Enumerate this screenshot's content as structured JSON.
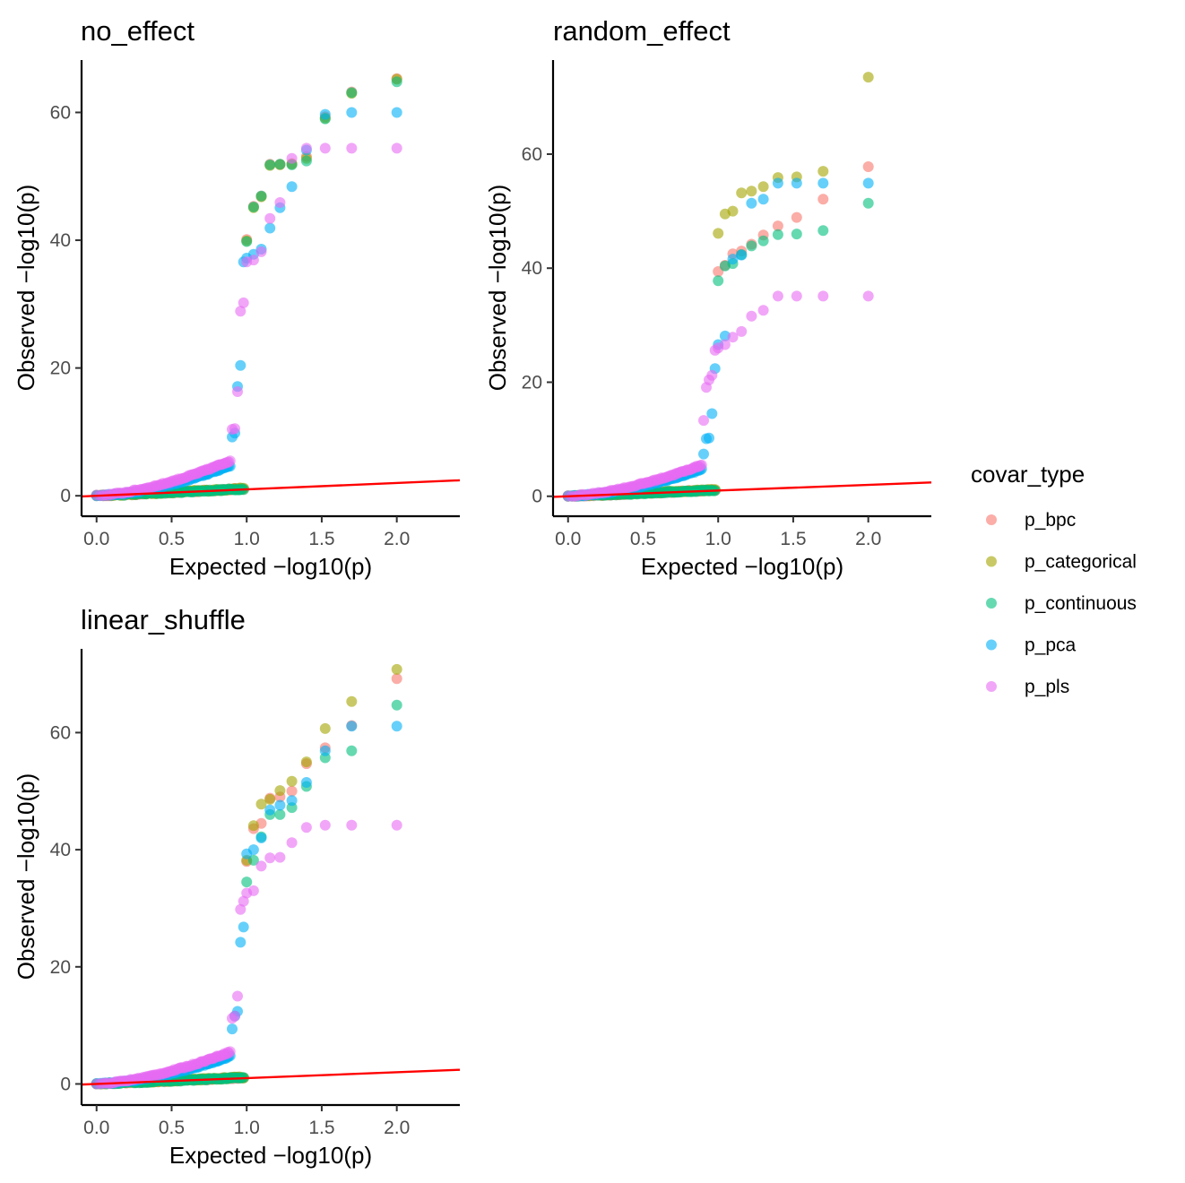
{
  "legend": {
    "title": "covar_type",
    "position": "right",
    "entries": [
      {
        "key": "p_bpc",
        "label": "p_bpc",
        "color": "#F8766D"
      },
      {
        "key": "p_categorical",
        "label": "p_categorical",
        "color": "#A3A500"
      },
      {
        "key": "p_continuous",
        "label": "p_continuous",
        "color": "#00BF7D"
      },
      {
        "key": "p_pca",
        "label": "p_pca",
        "color": "#00B0F6"
      },
      {
        "key": "p_pls",
        "label": "p_pls",
        "color": "#E76BF3"
      }
    ]
  },
  "chart_data": [
    {
      "type": "scatter",
      "title": "no_effect",
      "xlabel": "Expected −log10(p)",
      "ylabel": "Observed −log10(p)",
      "xlim": [
        -0.1,
        2.42
      ],
      "ylim": [
        -3.2,
        68.2
      ],
      "xticks": [
        0,
        0.5,
        1,
        1.5,
        2
      ],
      "xtick_labels": [
        "0.0",
        "0.5",
        "1.0",
        "1.5",
        "2.0"
      ],
      "yticks": [
        0,
        20,
        40,
        60
      ],
      "ytick_labels": [
        "0",
        "20",
        "40",
        "60"
      ],
      "grid": false,
      "reference_line": {
        "slope": 1,
        "intercept": 0,
        "color": "#FF0000"
      },
      "series": [
        {
          "name": "p_bpc",
          "x": [
            1.0,
            1.046,
            1.097,
            1.155,
            1.222,
            1.301,
            1.398,
            1.523,
            1.699,
            2.0
          ],
          "y": [
            40.1,
            45.3,
            46.9,
            51.9,
            51.9,
            52.0,
            53.1,
            59.3,
            63.2,
            65.3
          ]
        },
        {
          "name": "p_categorical",
          "x": [
            1.0,
            1.046,
            1.097,
            1.155,
            1.222,
            1.301,
            1.398,
            1.523,
            1.699,
            2.0
          ],
          "y": [
            39.9,
            45.1,
            46.8,
            51.7,
            51.8,
            51.9,
            52.8,
            59.1,
            63.0,
            65.2
          ]
        },
        {
          "name": "p_continuous",
          "x": [
            1.0,
            1.046,
            1.097,
            1.155,
            1.222,
            1.301,
            1.398,
            1.523,
            1.699,
            2.0
          ],
          "y": [
            39.8,
            45.2,
            46.9,
            51.8,
            51.9,
            51.8,
            52.4,
            59.0,
            63.1,
            64.8
          ]
        },
        {
          "name": "p_pca",
          "x": [
            0.903,
            0.921,
            0.939,
            0.959,
            0.979,
            1.0,
            1.046,
            1.097,
            1.155,
            1.222,
            1.301,
            1.398,
            1.523,
            1.699,
            2.0
          ],
          "y": [
            9.2,
            9.8,
            17.1,
            20.4,
            36.6,
            37.2,
            37.8,
            38.6,
            41.9,
            45.1,
            48.4,
            54.1,
            59.7,
            60.0,
            60.0
          ]
        },
        {
          "name": "p_pls",
          "x": [
            0.903,
            0.921,
            0.939,
            0.959,
            0.979,
            1.0,
            1.046,
            1.097,
            1.155,
            1.222,
            1.301,
            1.398,
            1.523,
            1.699,
            2.0
          ],
          "y": [
            10.4,
            10.5,
            16.3,
            28.9,
            30.2,
            36.6,
            36.9,
            38.2,
            43.4,
            45.9,
            52.8,
            54.4,
            54.4,
            54.4,
            54.4
          ]
        }
      ]
    },
    {
      "type": "scatter",
      "title": "random_effect",
      "xlabel": "Expected −log10(p)",
      "ylabel": "Observed −log10(p)",
      "xlim": [
        -0.1,
        2.42
      ],
      "ylim": [
        -3.5,
        76.5
      ],
      "xticks": [
        0,
        0.5,
        1,
        1.5,
        2
      ],
      "xtick_labels": [
        "0.0",
        "0.5",
        "1.0",
        "1.5",
        "2.0"
      ],
      "yticks": [
        0,
        20,
        40,
        60
      ],
      "ytick_labels": [
        "0",
        "20",
        "40",
        "60"
      ],
      "grid": false,
      "reference_line": {
        "slope": 1,
        "intercept": 0,
        "color": "#FF0000"
      },
      "series": [
        {
          "name": "p_bpc",
          "x": [
            1.0,
            1.046,
            1.097,
            1.155,
            1.222,
            1.301,
            1.398,
            1.523,
            1.699,
            2.0
          ],
          "y": [
            39.4,
            40.5,
            42.5,
            43.0,
            44.2,
            45.8,
            47.4,
            48.9,
            52.1,
            57.8
          ]
        },
        {
          "name": "p_categorical",
          "x": [
            1.0,
            1.046,
            1.097,
            1.155,
            1.222,
            1.301,
            1.398,
            1.523,
            1.699,
            2.0
          ],
          "y": [
            46.1,
            49.5,
            50.0,
            53.2,
            53.5,
            54.3,
            55.9,
            56.0,
            57.0,
            73.5
          ]
        },
        {
          "name": "p_continuous",
          "x": [
            1.0,
            1.046,
            1.097,
            1.155,
            1.222,
            1.301,
            1.398,
            1.523,
            1.699,
            2.0
          ],
          "y": [
            37.8,
            40.4,
            40.8,
            42.4,
            43.9,
            44.8,
            45.9,
            46.0,
            46.6,
            51.4
          ]
        },
        {
          "name": "p_pca",
          "x": [
            0.903,
            0.921,
            0.939,
            0.959,
            0.979,
            1.0,
            1.046,
            1.097,
            1.155,
            1.222,
            1.301,
            1.398,
            1.523,
            1.699,
            2.0
          ],
          "y": [
            7.4,
            10.1,
            10.2,
            14.5,
            22.4,
            26.6,
            28.1,
            41.6,
            42.3,
            51.4,
            52.1,
            54.9,
            54.9,
            54.9,
            54.9
          ]
        },
        {
          "name": "p_pls",
          "x": [
            0.903,
            0.921,
            0.939,
            0.959,
            0.979,
            1.0,
            1.046,
            1.097,
            1.155,
            1.222,
            1.301,
            1.398,
            1.523,
            1.699,
            2.0
          ],
          "y": [
            13.3,
            19.1,
            20.4,
            21.2,
            25.6,
            26.0,
            26.6,
            27.9,
            28.9,
            31.6,
            32.6,
            35.1,
            35.1,
            35.1,
            35.1
          ]
        }
      ]
    },
    {
      "type": "scatter",
      "title": "linear_shuffle",
      "xlabel": "Expected −log10(p)",
      "ylabel": "Observed −log10(p)",
      "xlim": [
        -0.1,
        2.42
      ],
      "ylim": [
        -3.6,
        74.3
      ],
      "xticks": [
        0,
        0.5,
        1,
        1.5,
        2
      ],
      "xtick_labels": [
        "0.0",
        "0.5",
        "1.0",
        "1.5",
        "2.0"
      ],
      "yticks": [
        0,
        20,
        40,
        60
      ],
      "ytick_labels": [
        "0",
        "20",
        "40",
        "60"
      ],
      "grid": false,
      "reference_line": {
        "slope": 1,
        "intercept": 0,
        "color": "#FF0000"
      },
      "series": [
        {
          "name": "p_bpc",
          "x": [
            1.0,
            1.046,
            1.097,
            1.155,
            1.222,
            1.301,
            1.398,
            1.523,
            1.699,
            2.0
          ],
          "y": [
            38.0,
            43.6,
            44.5,
            48.8,
            49.0,
            50.0,
            54.7,
            57.4,
            61.2,
            69.2
          ]
        },
        {
          "name": "p_categorical",
          "x": [
            1.0,
            1.046,
            1.097,
            1.155,
            1.222,
            1.301,
            1.398,
            1.523,
            1.699,
            2.0
          ],
          "y": [
            38.2,
            44.1,
            47.8,
            48.6,
            50.1,
            51.7,
            55.0,
            60.7,
            65.3,
            70.8
          ]
        },
        {
          "name": "p_continuous",
          "x": [
            1.0,
            1.046,
            1.097,
            1.155,
            1.222,
            1.301,
            1.398,
            1.523,
            1.699,
            2.0
          ],
          "y": [
            34.5,
            38.2,
            42.2,
            46.0,
            46.0,
            47.2,
            50.8,
            55.7,
            56.9,
            64.7
          ]
        },
        {
          "name": "p_pca",
          "x": [
            0.903,
            0.921,
            0.939,
            0.959,
            0.979,
            1.0,
            1.046,
            1.097,
            1.155,
            1.222,
            1.301,
            1.398,
            1.523,
            1.699,
            2.0
          ],
          "y": [
            9.4,
            11.6,
            12.4,
            24.2,
            26.8,
            39.3,
            40.0,
            42.0,
            46.8,
            47.6,
            48.4,
            51.5,
            56.9,
            61.1,
            61.1
          ]
        },
        {
          "name": "p_pls",
          "x": [
            0.903,
            0.921,
            0.939,
            0.959,
            0.979,
            1.0,
            1.046,
            1.097,
            1.155,
            1.222,
            1.301,
            1.398,
            1.523,
            1.699,
            2.0
          ],
          "y": [
            11.2,
            11.6,
            15.0,
            29.8,
            31.2,
            32.6,
            33.0,
            37.2,
            38.6,
            38.7,
            41.2,
            43.8,
            44.2,
            44.2,
            44.2
          ]
        }
      ]
    }
  ]
}
